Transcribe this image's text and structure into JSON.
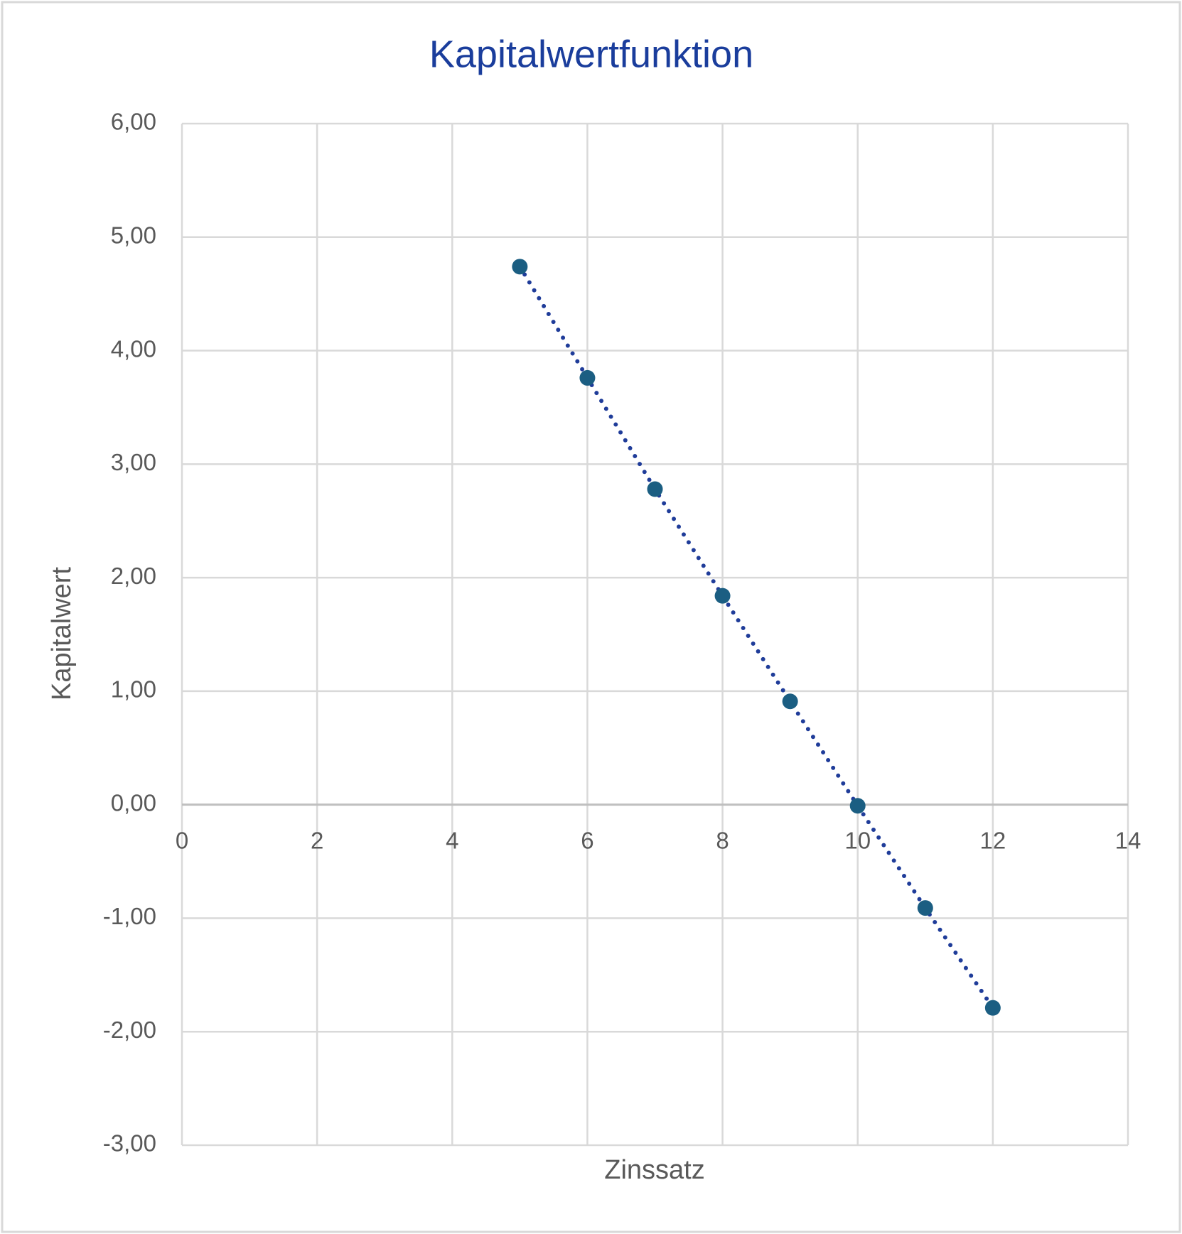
{
  "chart_data": {
    "type": "scatter",
    "title": "Kapitalwertfunktion",
    "x_label": "Zinssatz",
    "y_label": "Kapitalwert",
    "x": [
      5,
      6,
      7,
      8,
      9,
      10,
      11,
      12
    ],
    "series": [
      {
        "name": "Kapitalwert",
        "color": "#1b5e82",
        "line_color": "#1f3c99",
        "line_style": "dotted",
        "values": [
          4.74,
          3.76,
          2.78,
          1.84,
          0.91,
          -0.01,
          -0.91,
          -1.79
        ]
      }
    ],
    "xlim": [
      0,
      14
    ],
    "xticks": [
      0,
      2,
      4,
      6,
      8,
      10,
      12,
      14
    ],
    "ylim": [
      -3,
      6
    ],
    "yticks": [
      {
        "value": -3,
        "label": "-3,00"
      },
      {
        "value": -2,
        "label": "-2,00"
      },
      {
        "value": -1,
        "label": "-1,00"
      },
      {
        "value": 0,
        "label": "0,00"
      },
      {
        "value": 1,
        "label": "1,00"
      },
      {
        "value": 2,
        "label": "2,00"
      },
      {
        "value": 3,
        "label": "3,00"
      },
      {
        "value": 4,
        "label": "4,00"
      },
      {
        "value": 5,
        "label": "5,00"
      },
      {
        "value": 6,
        "label": "6,00"
      }
    ],
    "grid": true
  }
}
